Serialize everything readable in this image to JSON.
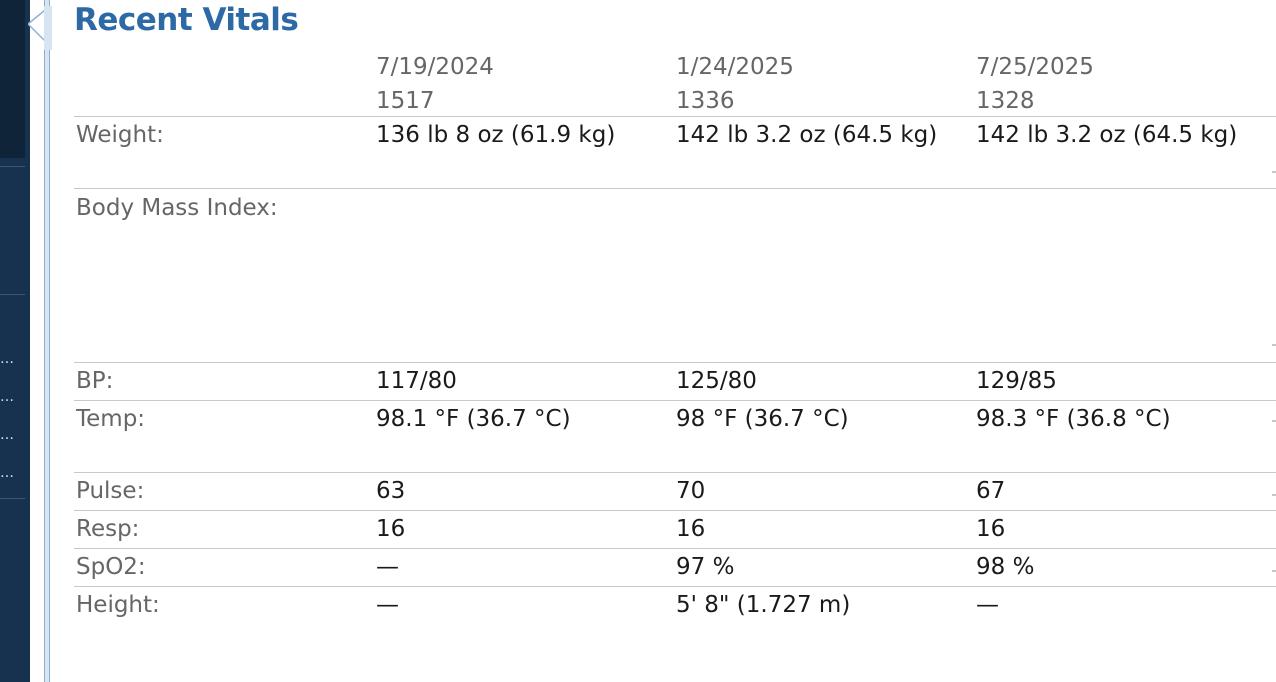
{
  "panel": {
    "title": "Recent Vitals"
  },
  "columns": [
    {
      "date": "7/19/2024",
      "time": "1517"
    },
    {
      "date": "1/24/2025",
      "time": "1336"
    },
    {
      "date": "7/25/2025",
      "time": "1328"
    }
  ],
  "rows": [
    {
      "label": "Weight:",
      "values": [
        "136 lb 8 oz (61.9 kg)",
        "142 lb 3.2 oz (64.5 kg)",
        "142 lb 3.2 oz (64.5 kg)"
      ]
    },
    {
      "label": "Body Mass Index:",
      "values": [
        "",
        "",
        ""
      ]
    },
    {
      "label": "BP:",
      "values": [
        "117/80",
        "125/80",
        "129/85"
      ]
    },
    {
      "label": "Temp:",
      "values": [
        "98.1 °F (36.7 °C)",
        "98 °F (36.7 °C)",
        "98.3 °F (36.8 °C)"
      ]
    },
    {
      "label": "Pulse:",
      "values": [
        "63",
        "70",
        "67"
      ]
    },
    {
      "label": "Resp:",
      "values": [
        "16",
        "16",
        "16"
      ]
    },
    {
      "label": "SpO2:",
      "values": [
        "—",
        "97 %",
        "98 %"
      ]
    },
    {
      "label": "Height:",
      "values": [
        "—",
        "5' 8\" (1.727 m)",
        "—"
      ]
    }
  ],
  "sidebar": {
    "overflow_markers": [
      "…",
      "…",
      "…",
      "…"
    ]
  }
}
